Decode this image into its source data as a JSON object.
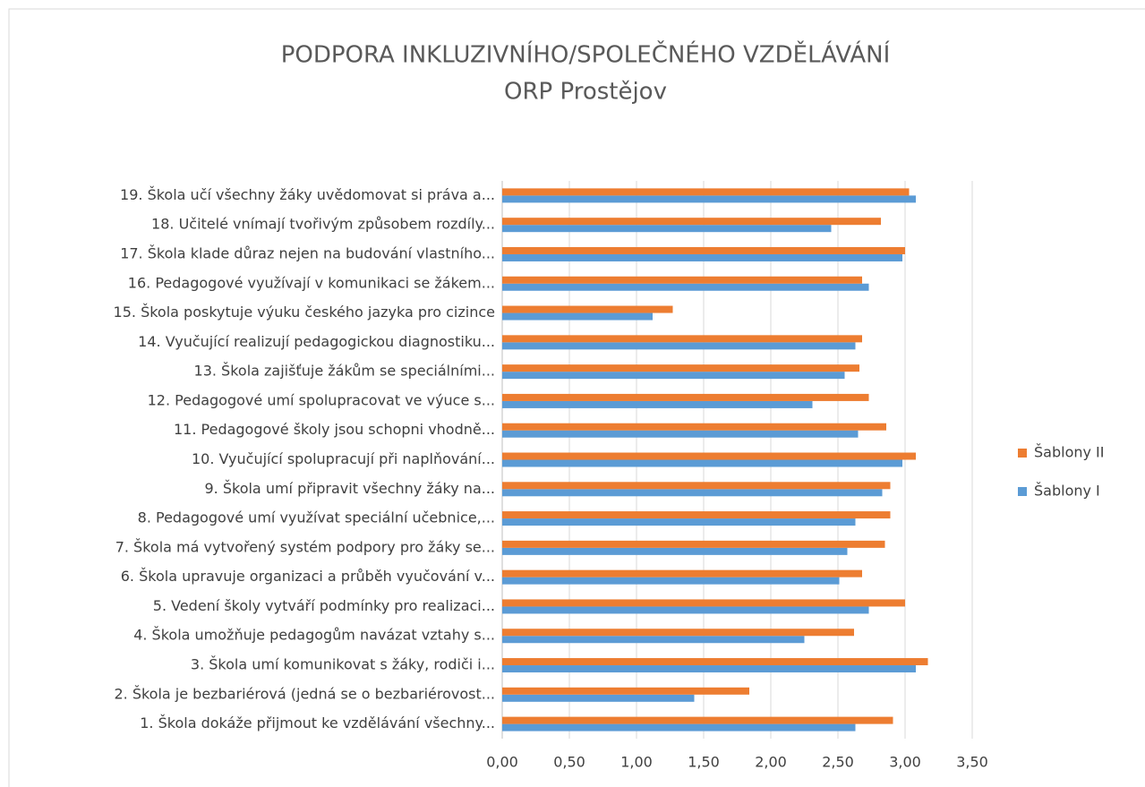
{
  "chart_data": {
    "type": "hbar",
    "title": "PODPORA INKLUZIVNÍHO/SPOLEČNÉHO VZDĚLÁVÁNÍ",
    "subtitle": "ORP Prostějov",
    "categories": [
      "1. Škola dokáže přijmout ke vzdělávání všechny...",
      "2. Škola je bezbariérová (jedná se o bezbariérovost...",
      "3. Škola umí komunikovat s žáky, rodiči i...",
      "4. Škola umožňuje pedagogům navázat vztahy s...",
      "5. Vedení školy vytváří podmínky pro realizaci...",
      "6. Škola upravuje organizaci a průběh vyučování v...",
      "7. Škola má vytvořený systém podpory pro žáky se...",
      "8. Pedagogové umí využívat speciální učebnice,...",
      "9. Škola umí připravit všechny žáky na...",
      "10. Vyučující spolupracují při naplňování...",
      "11. Pedagogové školy jsou schopni vhodně...",
      "12. Pedagogové umí spolupracovat ve výuce s...",
      "13. Škola zajišťuje žákům se speciálními...",
      "14. Vyučující realizují pedagogickou diagnostiku...",
      "15. Škola poskytuje výuku českého jazyka pro cizince",
      "16. Pedagogové využívají v komunikaci se žákem...",
      "17. Škola klade důraz nejen na budování vlastního...",
      "18. Učitelé vnímají tvořivým způsobem rozdíly...",
      "19. Škola učí všechny žáky uvědomovat si práva a..."
    ],
    "series": [
      {
        "name": "Šablony I",
        "color": "#5b9bd5",
        "values": [
          2.63,
          1.43,
          3.08,
          2.25,
          2.73,
          2.51,
          2.57,
          2.63,
          2.83,
          2.98,
          2.65,
          2.31,
          2.55,
          2.63,
          1.12,
          2.73,
          2.98,
          2.45,
          3.08
        ]
      },
      {
        "name": "Šablony II",
        "color": "#ed7d31",
        "values": [
          2.91,
          1.84,
          3.17,
          2.62,
          3.0,
          2.68,
          2.85,
          2.89,
          2.89,
          3.08,
          2.86,
          2.73,
          2.66,
          2.68,
          1.27,
          2.68,
          3.0,
          2.82,
          3.03
        ]
      }
    ],
    "xlim": [
      0,
      3.5
    ],
    "xticks": [
      {
        "value": 0,
        "label": "0,00"
      },
      {
        "value": 0.5,
        "label": "0,50"
      },
      {
        "value": 1,
        "label": "1,00"
      },
      {
        "value": 1.5,
        "label": "1,50"
      },
      {
        "value": 2,
        "label": "2,00"
      },
      {
        "value": 2.5,
        "label": "2,50"
      },
      {
        "value": 3,
        "label": "3,00"
      },
      {
        "value": 3.5,
        "label": "3,50"
      }
    ],
    "grid": true,
    "legend": "right"
  }
}
